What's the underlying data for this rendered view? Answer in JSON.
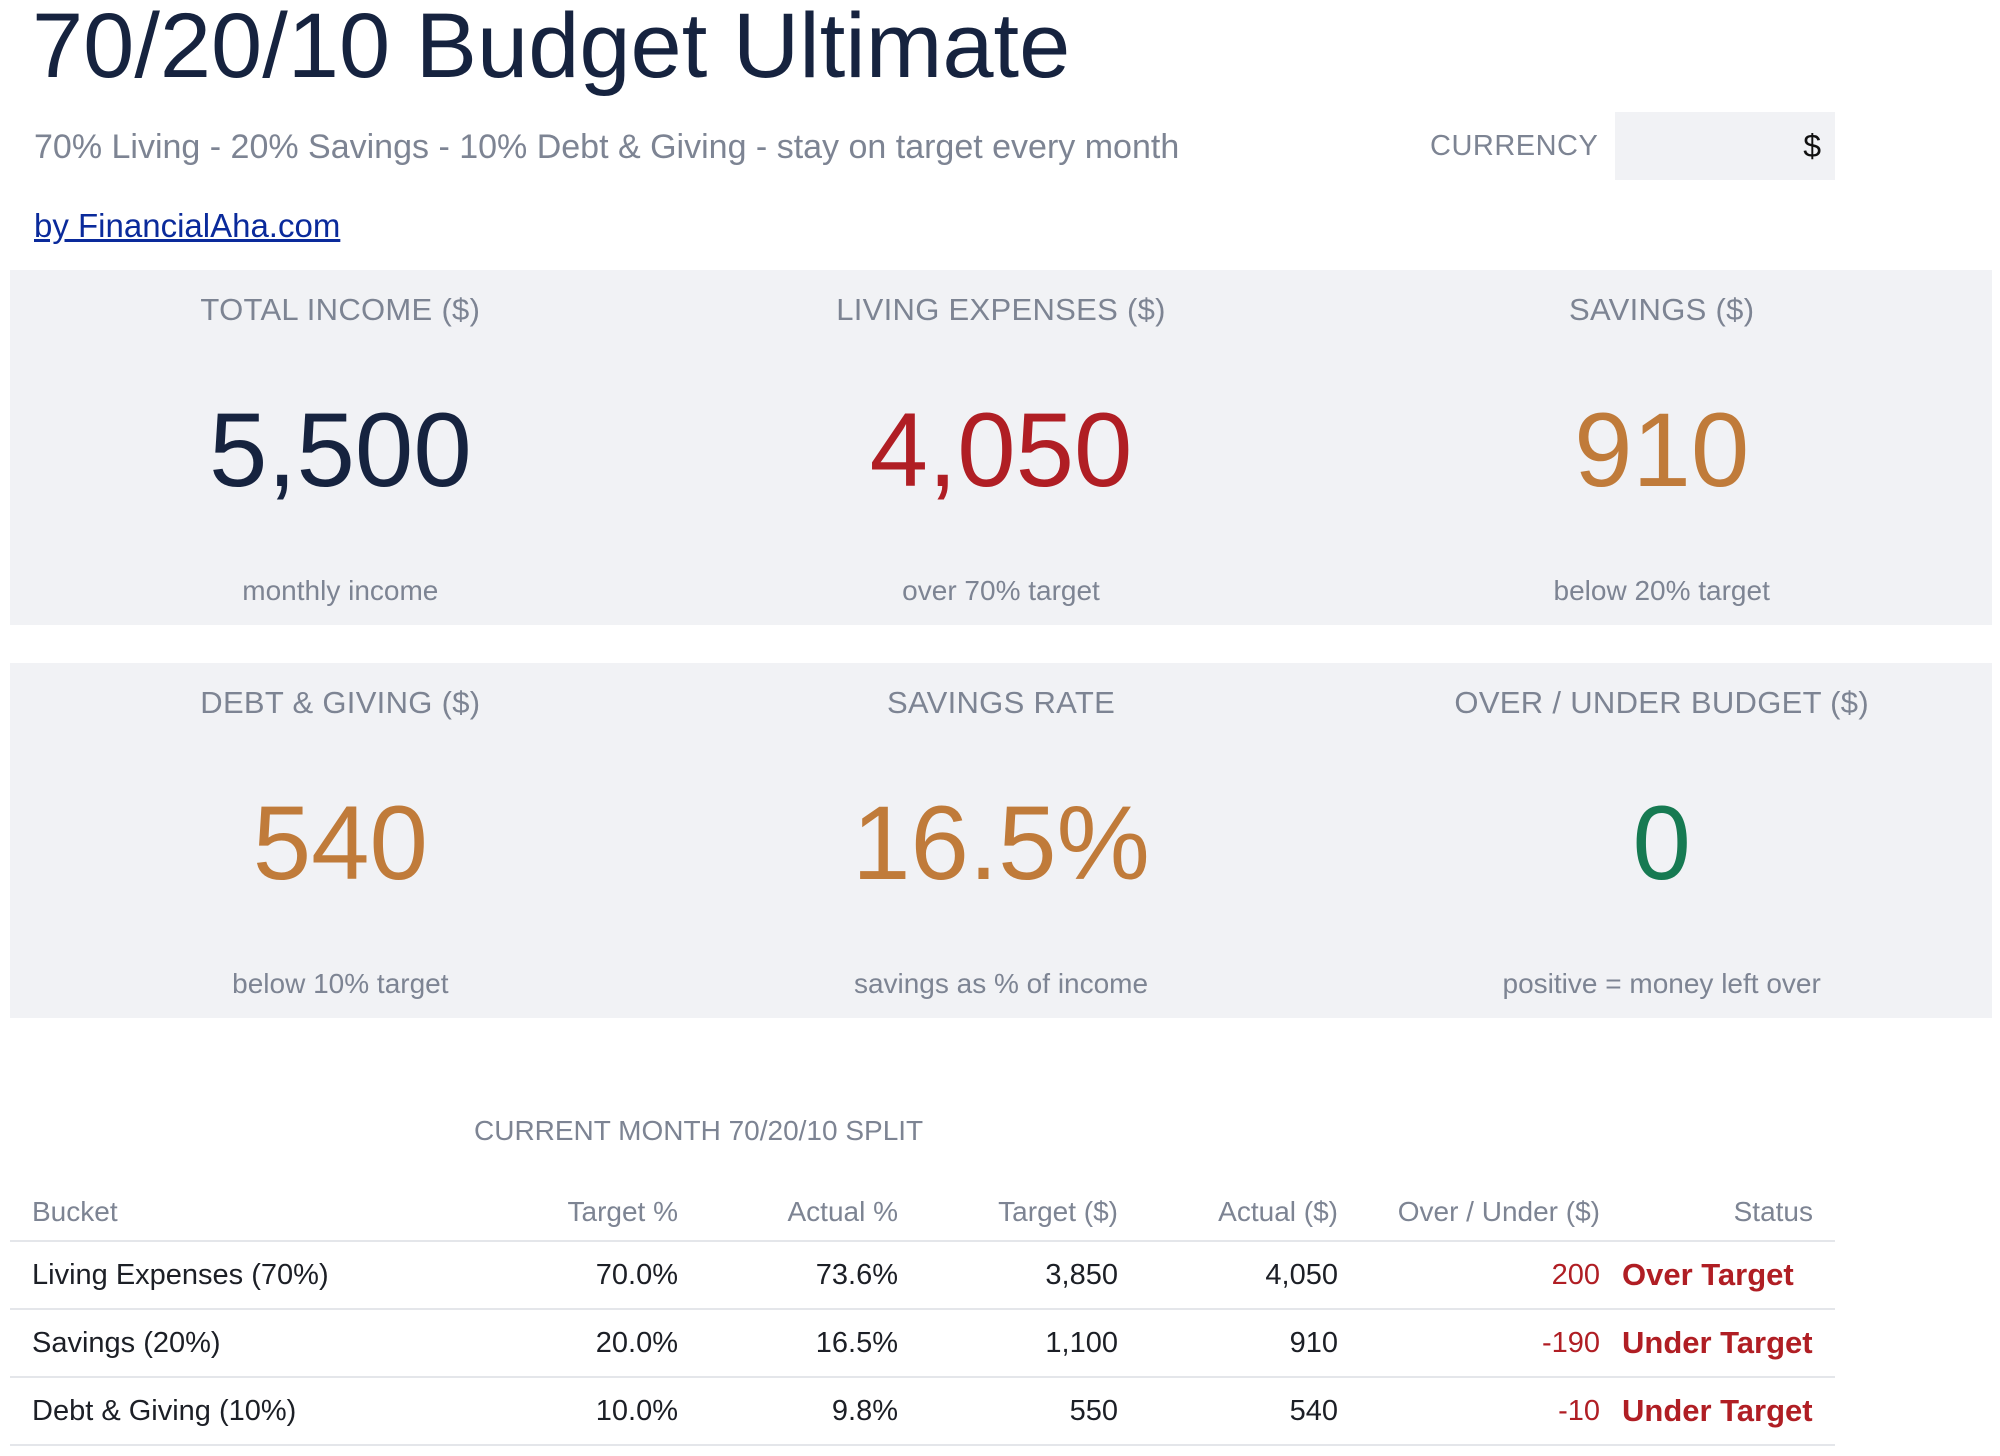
{
  "header": {
    "title": "70/20/10 Budget Ultimate",
    "subtitle": "70% Living - 20% Savings - 10% Debt & Giving - stay on target every month",
    "byline": "by FinancialAha.com",
    "currency_label": "CURRENCY",
    "currency_value": "$"
  },
  "colors": {
    "navy": "#16233f",
    "red": "#b01e24",
    "amber": "#c07b3a",
    "green": "#167a52",
    "panel_bg": "#f1f2f5"
  },
  "cards_row1": [
    {
      "label": "TOTAL INCOME ($)",
      "value": "5,500",
      "note": "monthly income"
    },
    {
      "label": "LIVING EXPENSES ($)",
      "value": "4,050",
      "note": "over 70% target"
    },
    {
      "label": "SAVINGS ($)",
      "value": "910",
      "note": "below 20% target"
    }
  ],
  "cards_row2": [
    {
      "label": "DEBT & GIVING ($)",
      "value": "540",
      "note": "below 10% target"
    },
    {
      "label": "SAVINGS RATE",
      "value": "16.5%",
      "note": "savings as % of income"
    },
    {
      "label": "OVER / UNDER BUDGET ($)",
      "value": "0",
      "note": "positive = money left over"
    }
  ],
  "split": {
    "title": "CURRENT MONTH 70/20/10 SPLIT",
    "columns": [
      "Bucket",
      "Target %",
      "Actual %",
      "Target ($)",
      "Actual ($)",
      "Over / Under ($)",
      "Status"
    ],
    "rows": [
      {
        "bucket": "Living Expenses (70%)",
        "target_pct": "70.0%",
        "actual_pct": "73.6%",
        "target_amt": "3,850",
        "actual_amt": "4,050",
        "over_under": "200",
        "status": "Over Target"
      },
      {
        "bucket": "Savings (20%)",
        "target_pct": "20.0%",
        "actual_pct": "16.5%",
        "target_amt": "1,100",
        "actual_amt": "910",
        "over_under": "-190",
        "status": "Under Target"
      },
      {
        "bucket": "Debt & Giving (10%)",
        "target_pct": "10.0%",
        "actual_pct": "9.8%",
        "target_amt": "550",
        "actual_amt": "540",
        "over_under": "-10",
        "status": "Under Target"
      }
    ]
  }
}
